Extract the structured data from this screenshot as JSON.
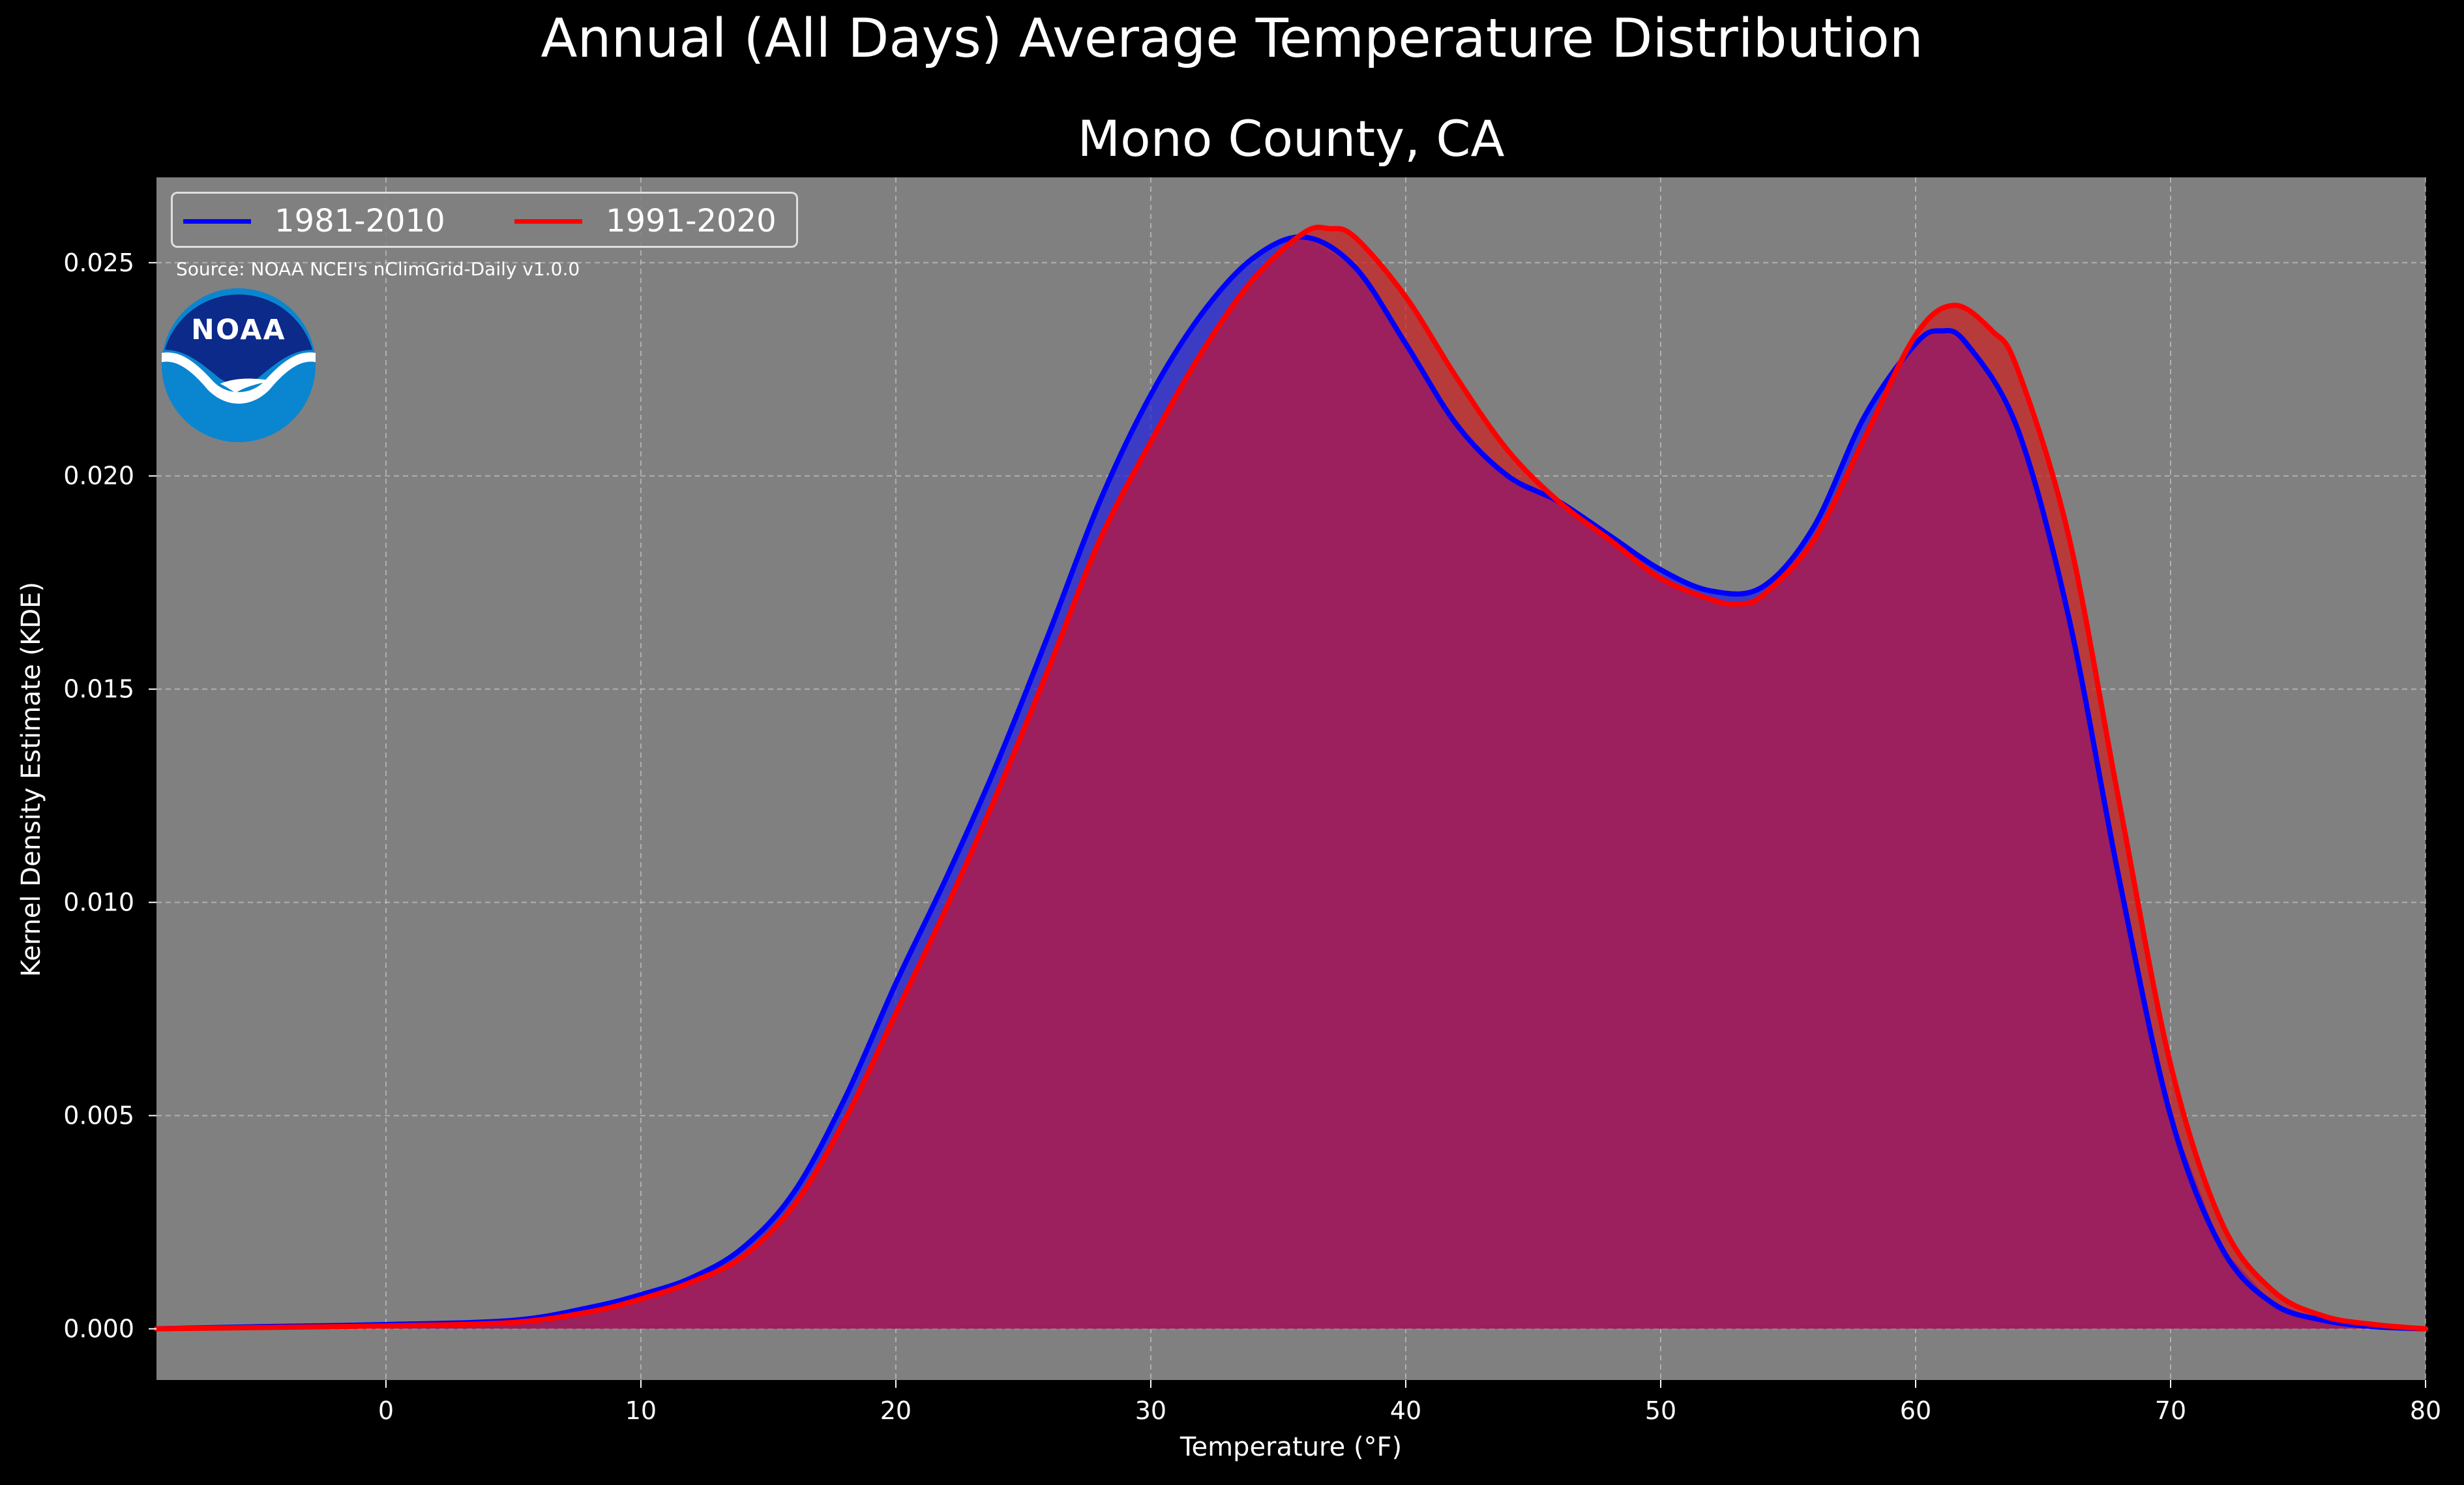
{
  "chart_data": {
    "type": "area",
    "title": "Annual (All Days) Average Temperature Distribution",
    "subtitle": "Mono County, CA",
    "xlabel": "Temperature (°F)",
    "ylabel": "Kernel Density Estimate (KDE)",
    "xlim": [
      -9,
      80
    ],
    "ylim": [
      -0.0012,
      0.027
    ],
    "x_ticks": [
      0,
      10,
      20,
      30,
      40,
      50,
      60,
      70,
      80
    ],
    "y_ticks": [
      0.0,
      0.005,
      0.01,
      0.015,
      0.02,
      0.025
    ],
    "x_tick_labels": [
      "0",
      "10",
      "20",
      "30",
      "40",
      "50",
      "60",
      "70",
      "80"
    ],
    "y_tick_labels": [
      "0.000",
      "0.005",
      "0.010",
      "0.015",
      "0.020",
      "0.025"
    ],
    "grid": true,
    "legend_position": "top-left",
    "source_note": "Source: NOAA NCEI's nClimGrid-Daily v1.0.0",
    "logo_text": "NOAA",
    "series": [
      {
        "name": "1981-2010",
        "color": "#0000ff",
        "fill": "#2020dd",
        "x": [
          -9,
          -5,
          0,
          5,
          8,
          10,
          12,
          14,
          16,
          18,
          20,
          22,
          24,
          26,
          28,
          30,
          32,
          34,
          36,
          38,
          40,
          42,
          44,
          46,
          48,
          50,
          52,
          54,
          56,
          58,
          60,
          61,
          62,
          64,
          66,
          68,
          70,
          72,
          74,
          76,
          78,
          80
        ],
        "y": [
          0.0,
          5e-05,
          0.0001,
          0.0002,
          0.0005,
          0.0008,
          0.0012,
          0.0019,
          0.0032,
          0.0054,
          0.0081,
          0.0106,
          0.0133,
          0.0163,
          0.0194,
          0.0219,
          0.0238,
          0.0251,
          0.0256,
          0.0249,
          0.0231,
          0.0212,
          0.02,
          0.0194,
          0.0186,
          0.0178,
          0.0173,
          0.0174,
          0.0188,
          0.0214,
          0.0231,
          0.0234,
          0.0231,
          0.0211,
          0.0167,
          0.0105,
          0.005,
          0.0019,
          0.0006,
          0.0002,
          5e-05,
          0.0
        ]
      },
      {
        "name": "1991-2020",
        "color": "#ff0000",
        "fill": "#cc2020",
        "x": [
          -9,
          -5,
          0,
          5,
          8,
          10,
          12,
          14,
          16,
          18,
          20,
          22,
          24,
          26,
          28,
          30,
          32,
          34,
          36,
          37,
          38,
          40,
          42,
          44,
          46,
          48,
          50,
          52,
          53,
          54,
          56,
          58,
          60,
          61.5,
          63,
          64,
          66,
          68,
          70,
          72,
          74,
          76,
          78,
          80
        ],
        "y": [
          0.0,
          3e-05,
          7e-05,
          0.00015,
          0.0004,
          0.0007,
          0.0011,
          0.0017,
          0.0029,
          0.0049,
          0.0074,
          0.0099,
          0.0126,
          0.0155,
          0.0185,
          0.0208,
          0.0229,
          0.0246,
          0.0257,
          0.0258,
          0.0256,
          0.0242,
          0.0223,
          0.0206,
          0.0194,
          0.0185,
          0.0176,
          0.0171,
          0.017,
          0.0172,
          0.0185,
          0.0209,
          0.0233,
          0.024,
          0.0234,
          0.0225,
          0.0186,
          0.0123,
          0.0062,
          0.0025,
          0.0009,
          0.0003,
          0.0001,
          0.0
        ]
      }
    ],
    "overlap_fill": "#9c1f5e"
  }
}
